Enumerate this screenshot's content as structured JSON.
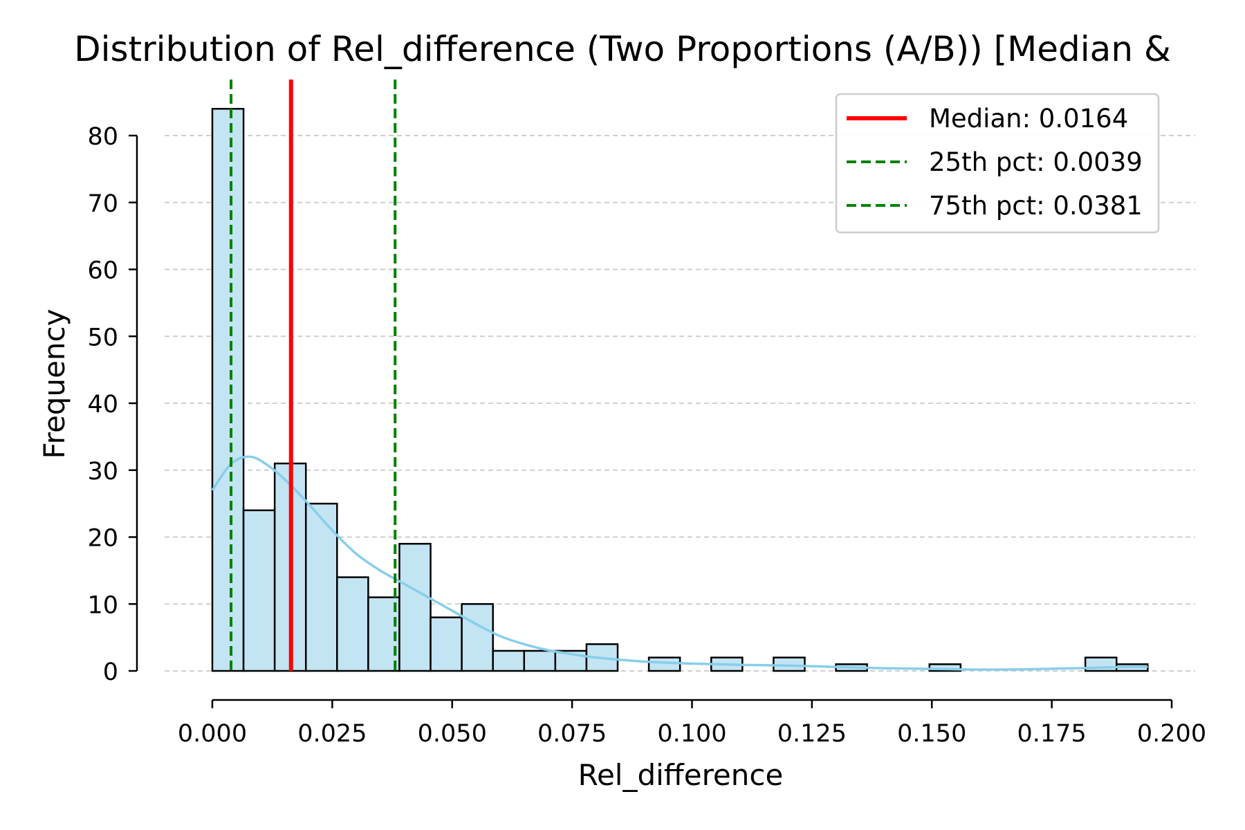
{
  "chart_data": {
    "type": "bar",
    "title": "Distribution of Rel_difference (Two Proportions (A/B)) [Median &",
    "xlabel": "Rel_difference",
    "ylabel": "Frequency",
    "xlim": [
      0.0,
      0.2
    ],
    "ylim": [
      0,
      87
    ],
    "x_ticks": [
      "0.000",
      "0.025",
      "0.050",
      "0.075",
      "0.100",
      "0.125",
      "0.150",
      "0.175",
      "0.200"
    ],
    "y_ticks": [
      "0",
      "10",
      "20",
      "30",
      "40",
      "50",
      "60",
      "70",
      "80"
    ],
    "grid": "horizontal dashed",
    "bin_edges": [
      0.0,
      0.0065,
      0.013,
      0.0195,
      0.026,
      0.0325,
      0.039,
      0.0455,
      0.052,
      0.0585,
      0.065,
      0.0715,
      0.078,
      0.0845,
      0.091,
      0.0975,
      0.104,
      0.1105,
      0.117,
      0.1235,
      0.13,
      0.1365,
      0.143,
      0.1495,
      0.156,
      0.1625,
      0.169,
      0.1755,
      0.182,
      0.1885,
      0.195
    ],
    "counts": [
      84,
      24,
      31,
      25,
      14,
      11,
      19,
      8,
      10,
      3,
      3,
      3,
      4,
      0,
      2,
      0,
      2,
      0,
      2,
      0,
      1,
      0,
      0,
      1,
      0,
      0,
      0,
      0,
      2,
      1
    ],
    "kde": {
      "x": [
        0.0,
        0.004,
        0.008,
        0.012,
        0.016,
        0.02,
        0.025,
        0.03,
        0.035,
        0.04,
        0.045,
        0.05,
        0.055,
        0.06,
        0.065,
        0.07,
        0.075,
        0.08,
        0.09,
        0.1,
        0.11,
        0.12,
        0.13,
        0.14,
        0.15,
        0.16,
        0.17,
        0.18,
        0.19,
        0.195
      ],
      "y": [
        27,
        31,
        32,
        30.5,
        28,
        25,
        21,
        17.5,
        15,
        13,
        11,
        9,
        7,
        5.2,
        4,
        3.1,
        2.5,
        2,
        1.4,
        1.1,
        0.9,
        0.8,
        0.6,
        0.4,
        0.3,
        0.2,
        0.25,
        0.4,
        0.6,
        0.6
      ]
    },
    "reference_lines": [
      {
        "label": "Median: 0.0164",
        "value": 0.0164,
        "color": "#ff0000",
        "style": "solid"
      },
      {
        "label": "25th pct: 0.0039",
        "value": 0.0039,
        "color": "#008000",
        "style": "dashed"
      },
      {
        "label": "75th pct: 0.0381",
        "value": 0.0381,
        "color": "#008000",
        "style": "dashed"
      }
    ],
    "bar_fill": "#c3e4f3",
    "kde_color": "#87ceeb",
    "legend_position": "top-right"
  }
}
